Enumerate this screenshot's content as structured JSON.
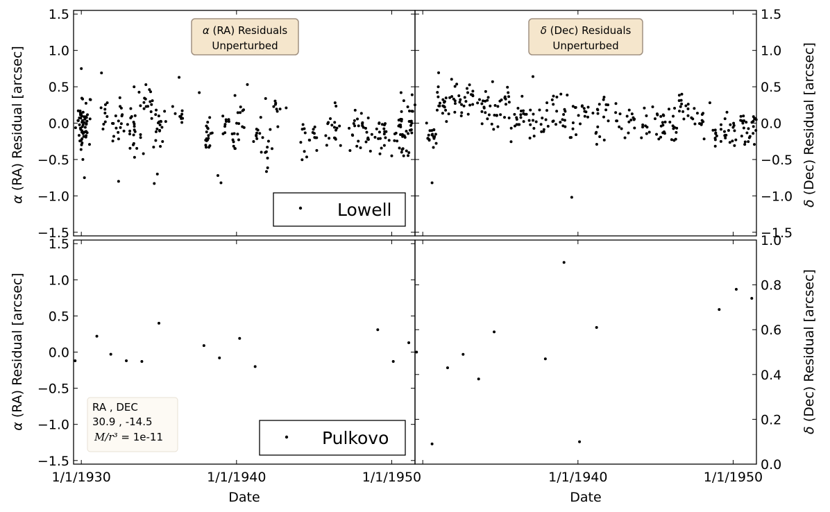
{
  "figure": {
    "xlabel": "Date",
    "x_tick_labels": [
      "1/1/1930",
      "1/1/1940",
      "1/1/1950"
    ],
    "left_ylabel_sym": "α",
    "left_ylabel_text": " (RA) Residual [arcsec]",
    "right_ylabel_sym": "δ",
    "right_ylabel_text": " (Dec) Residual [arcsec]",
    "ra_box": {
      "sym": "α",
      "line1": " (RA) Residuals",
      "line2": "Unperturbed"
    },
    "dec_box": {
      "sym": "δ",
      "line1": " (Dec) Residuals",
      "line2": "Unperturbed"
    },
    "legend_top": "Lowell",
    "legend_bottom": "Pulkovo",
    "info": {
      "line1": "RA , DEC",
      "line2": "30.9 , -14.5",
      "math": "M/r³",
      "line3_val": " = 1e-11"
    },
    "colors": {
      "marker": "#000000",
      "box_fill": "#f5e6cc",
      "box_edge": "#a09080",
      "info_fill": "#fdfaf4"
    }
  },
  "chart_data": [
    {
      "type": "scatter",
      "name": "Lowell RA residuals",
      "xlim": [
        1929.5,
        1951.5
      ],
      "ylim": [
        -1.55,
        1.55
      ],
      "ylabel": "α (RA) Residual [arcsec]",
      "y_ticks": [
        1.5,
        1.0,
        0.5,
        0.0,
        -0.5,
        -1.0,
        -1.5
      ],
      "y_tick_labels": [
        "1.5",
        "1.0",
        "0.5",
        "0.0",
        "−0.5",
        "−1.0",
        "−1.5"
      ],
      "x": [
        1930.0,
        1930.0,
        1930.1,
        1930.2,
        1930.3,
        1930.4,
        1931.4,
        1932.2,
        1932.6,
        1933.2,
        1934.6,
        1935.0,
        1935.1,
        1936.3,
        1938.0,
        1938.2,
        1939.3,
        1940.4,
        1941.3,
        1942.5,
        1946.0,
        1947.5,
        1948.5,
        1949.2,
        1950.2,
        1950.6,
        1950.9,
        1951.3,
        1933.5,
        1934.0,
        1939.9,
        1942.0,
        1944.4,
        1945.0,
        1946.3,
        1948.0,
        1949.6,
        1951.1
      ],
      "y": [
        0.0,
        -0.1,
        0.1,
        -0.2,
        0.15,
        -0.05,
        0.1,
        -0.1,
        0.05,
        0.0,
        0.2,
        -0.15,
        0.05,
        0.1,
        -0.1,
        -0.2,
        0.0,
        0.1,
        -0.1,
        0.2,
        -0.05,
        -0.1,
        -0.2,
        -0.1,
        -0.15,
        -0.05,
        -0.3,
        0.28,
        -0.3,
        0.25,
        -0.2,
        -0.35,
        -0.25,
        -0.2,
        0.0,
        -0.1,
        -0.2,
        -0.1
      ],
      "outliers_x": [
        1930.0,
        1930.2,
        1931.3,
        1932.4,
        1933.4,
        1934.7,
        1936.3,
        1937.6,
        1939.0,
        1939.9,
        1940.7,
        1942.0,
        1943.2,
        1950.0,
        1950.6,
        1930.1,
        1934.9,
        1938.8,
        1934.0,
        1941.6
      ],
      "outliers_y": [
        0.75,
        -0.75,
        0.69,
        -0.8,
        0.5,
        -0.83,
        0.63,
        0.42,
        -0.82,
        0.38,
        0.53,
        -0.48,
        0.21,
        -0.45,
        0.42,
        -0.5,
        -0.7,
        -0.72,
        -0.42,
        -0.4
      ],
      "legend": "Lowell"
    },
    {
      "type": "scatter",
      "name": "Lowell Dec residuals",
      "xlim": [
        1929.5,
        1951.5
      ],
      "ylim": [
        -1.55,
        1.55
      ],
      "ylabel": "δ (Dec) Residual [arcsec]",
      "y_ticks": [
        1.5,
        1.0,
        0.5,
        0.0,
        -0.5,
        -1.0,
        -1.5
      ],
      "y_tick_labels": [
        "1.5",
        "1.0",
        "0.5",
        "0.0",
        "−0.5",
        "−1.0",
        "−1.5"
      ],
      "x": [
        1930.5,
        1930.7,
        1931.1,
        1931.5,
        1931.9,
        1932.5,
        1933.1,
        1933.8,
        1934.3,
        1934.8,
        1935.4,
        1936.1,
        1936.5,
        1937.1,
        1937.8,
        1938.4,
        1939.2,
        1939.8,
        1940.4,
        1941.2,
        1941.8,
        1942.6,
        1943.4,
        1944.3,
        1945.1,
        1945.5,
        1946.1,
        1946.6,
        1947.2,
        1948.0,
        1948.9,
        1949.4,
        1950.1,
        1950.6,
        1951.0,
        1951.4
      ],
      "y": [
        -0.1,
        -0.2,
        0.3,
        0.2,
        0.35,
        0.2,
        0.3,
        0.25,
        0.1,
        0.15,
        0.2,
        0.05,
        0.1,
        0.0,
        0.05,
        0.2,
        0.1,
        0.05,
        0.15,
        0.0,
        0.25,
        0.0,
        0.0,
        0.0,
        0.05,
        -0.05,
        -0.1,
        0.2,
        0.1,
        0.0,
        -0.2,
        -0.1,
        -0.15,
        0.0,
        -0.1,
        0.05
      ],
      "outliers_x": [
        1930.6,
        1939.6,
        1934.5,
        1935.5,
        1937.1,
        1931.0,
        1932.9,
        1936.4,
        1938.9,
        1948.5,
        1949.6,
        1946.3
      ],
      "outliers_y": [
        -0.82,
        -1.02,
        0.57,
        0.42,
        0.64,
        0.5,
        0.42,
        0.37,
        0.4,
        0.28,
        0.15,
        -0.22
      ]
    },
    {
      "type": "scatter",
      "name": "Pulkovo RA residuals",
      "xlim": [
        1929.5,
        1951.5
      ],
      "ylim": [
        -1.55,
        1.55
      ],
      "ylabel": "α (RA) Residual [arcsec]",
      "y_ticks": [
        1.5,
        1.0,
        0.5,
        0.0,
        -0.5,
        -1.0,
        -1.5
      ],
      "y_tick_labels": [
        "1.5",
        "1.0",
        "0.5",
        "0.0",
        "−0.5",
        "−1.0",
        "−1.5"
      ],
      "x": [
        1929.6,
        1931.0,
        1931.9,
        1932.9,
        1933.9,
        1935.0,
        1937.9,
        1938.9,
        1940.2,
        1941.2,
        1949.1,
        1950.1,
        1951.1
      ],
      "y": [
        -0.12,
        0.22,
        -0.03,
        -0.12,
        -0.13,
        0.4,
        0.09,
        -0.08,
        0.19,
        -0.2,
        0.31,
        -0.13,
        0.13
      ],
      "legend": "Pulkovo"
    },
    {
      "type": "scatter",
      "name": "Pulkovo Dec residuals",
      "xlim": [
        1929.5,
        1951.5
      ],
      "ylim": [
        0.0,
        1.0
      ],
      "ylabel": "δ (Dec) Residual [arcsec]",
      "y_ticks": [
        1.0,
        0.8,
        0.6,
        0.4,
        0.2,
        0.0
      ],
      "y_tick_labels": [
        "1.0",
        "0.8",
        "0.6",
        "0.4",
        "0.2",
        "0.0"
      ],
      "x": [
        1929.6,
        1930.6,
        1931.6,
        1932.6,
        1933.6,
        1934.6,
        1937.9,
        1939.1,
        1940.1,
        1941.2,
        1949.1,
        1950.2,
        1951.2
      ],
      "y": [
        0.5,
        0.09,
        0.43,
        0.49,
        0.38,
        0.59,
        0.47,
        0.9,
        0.1,
        0.61,
        0.69,
        0.78,
        0.74
      ]
    }
  ]
}
